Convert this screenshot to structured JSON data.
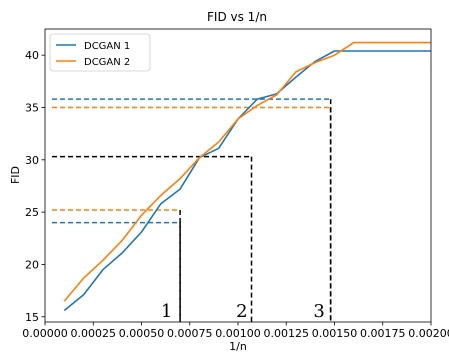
{
  "chart_data": {
    "type": "line",
    "title": "FID vs 1/n",
    "xlabel": "1/n",
    "ylabel": "FID",
    "xlim": [
      0.0,
      0.002
    ],
    "ylim": [
      14.5,
      42.5
    ],
    "xticks": [
      "0.00000",
      "0.00025",
      "0.00050",
      "0.00075",
      "0.00100",
      "0.00125",
      "0.00150",
      "0.00175",
      "0.00200"
    ],
    "yticks": [
      "15",
      "20",
      "25",
      "30",
      "35",
      "40"
    ],
    "xtick_values": [
      0.0,
      0.00025,
      0.0005,
      0.00075,
      0.001,
      0.00125,
      0.0015,
      0.00175,
      0.002
    ],
    "ytick_values": [
      15,
      20,
      25,
      30,
      35,
      40
    ],
    "grid": false,
    "legend_position": "top-left",
    "series": [
      {
        "name": "DCGAN 1",
        "color": "#1f77b4",
        "x": [
          0.0001,
          0.0002,
          0.0003,
          0.0004,
          0.0005,
          0.0006,
          0.0007,
          0.0008,
          0.0009,
          0.001,
          0.0011,
          0.0012,
          0.0013,
          0.0014,
          0.0015,
          0.0016,
          0.0017,
          0.0018,
          0.0019,
          0.002
        ],
        "values": [
          15.6,
          17.1,
          19.5,
          21.1,
          23.1,
          25.8,
          27.2,
          30.2,
          31.1,
          33.9,
          35.8,
          36.3,
          37.9,
          39.4,
          40.4,
          40.4,
          40.4,
          40.4,
          40.4,
          40.4
        ]
      },
      {
        "name": "DCGAN 2",
        "color": "#ff7f0e",
        "x": [
          0.0001,
          0.0002,
          0.0003,
          0.0004,
          0.0005,
          0.0006,
          0.0007,
          0.0008,
          0.0009,
          0.001,
          0.0011,
          0.0012,
          0.0013,
          0.0014,
          0.0015,
          0.0016,
          0.0017,
          0.0018,
          0.0019,
          0.002
        ],
        "values": [
          16.5,
          18.7,
          20.4,
          22.3,
          24.7,
          26.6,
          28.2,
          30.2,
          31.7,
          33.9,
          35.2,
          36.2,
          38.4,
          39.3,
          40.0,
          41.2,
          41.2,
          41.2,
          41.2,
          41.2
        ]
      }
    ],
    "reference_lines": [
      {
        "color": "#1f77b4",
        "x": 0.0007,
        "y": 24.0
      },
      {
        "color": "#ff7f0e",
        "x": 0.0007,
        "y": 25.2
      },
      {
        "color": "#000000",
        "x": 0.00107,
        "y": 30.3
      },
      {
        "color": "#1f77b4",
        "x": 0.00148,
        "y": 35.8
      },
      {
        "color": "#ff7f0e",
        "x": 0.00148,
        "y": 35.0
      }
    ],
    "annotations": [
      {
        "text": "1",
        "x": 0.00063,
        "y": 15.0
      },
      {
        "text": "2",
        "x": 0.00102,
        "y": 15.0
      },
      {
        "text": "3",
        "x": 0.00142,
        "y": 15.0
      }
    ]
  }
}
